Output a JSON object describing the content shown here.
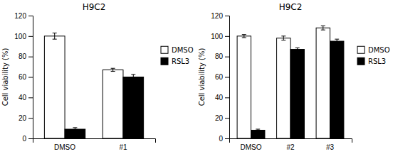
{
  "chart_data": [
    {
      "type": "bar",
      "title": "H9C2",
      "ylabel": "Cell viability (%)",
      "categories": [
        "DMSO",
        "#1"
      ],
      "series": [
        {
          "name": "DMSO",
          "color": "white",
          "values": [
            100,
            67
          ],
          "errors": [
            3,
            1.5
          ]
        },
        {
          "name": "RSL3",
          "color": "black",
          "values": [
            9,
            60
          ],
          "errors": [
            1.5,
            2.5
          ]
        }
      ],
      "ylim": [
        0,
        120
      ],
      "yticks": [
        0,
        20,
        40,
        60,
        80,
        100,
        120
      ],
      "grid": false,
      "legend": "right"
    },
    {
      "type": "bar",
      "title": "H9C2",
      "ylabel": "Cell viability (%)",
      "categories": [
        "DMSO",
        "#2",
        "#3"
      ],
      "series": [
        {
          "name": "DMSO",
          "color": "white",
          "values": [
            100,
            98,
            108
          ],
          "errors": [
            1.5,
            2,
            2
          ]
        },
        {
          "name": "RSL3",
          "color": "black",
          "values": [
            8,
            87,
            95
          ],
          "errors": [
            1,
            1.5,
            2
          ]
        }
      ],
      "ylim": [
        0,
        120
      ],
      "yticks": [
        0,
        20,
        40,
        60,
        80,
        100,
        120
      ],
      "grid": false,
      "legend": "right"
    }
  ]
}
